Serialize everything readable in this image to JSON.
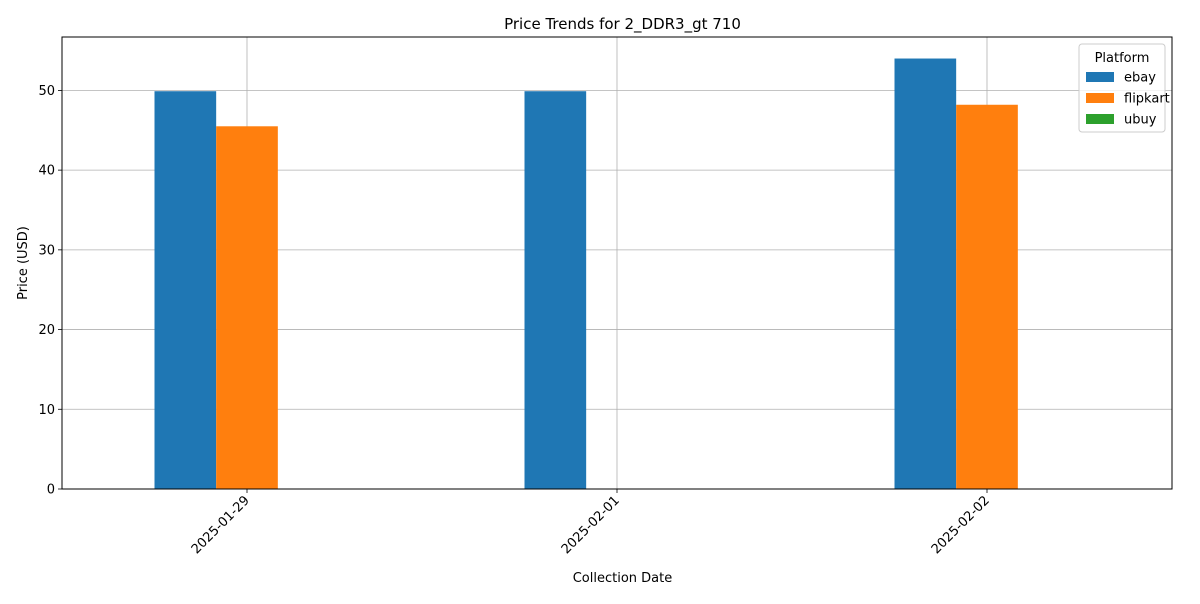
{
  "chart_data": {
    "type": "bar",
    "title": "Price Trends for 2_DDR3_gt 710",
    "xlabel": "Collection Date",
    "ylabel": "Price (USD)",
    "categories": [
      "2025-01-29",
      "2025-02-01",
      "2025-02-02"
    ],
    "series": [
      {
        "name": "ebay",
        "color": "#1f77b4",
        "values": [
          49.9,
          49.9,
          54.0
        ]
      },
      {
        "name": "flipkart",
        "color": "#ff7f0e",
        "values": [
          45.5,
          null,
          48.2
        ]
      },
      {
        "name": "ubuy",
        "color": "#2ca02c",
        "values": [
          null,
          null,
          null
        ]
      }
    ],
    "ylim": [
      0,
      56.7
    ],
    "yticks": [
      0,
      10,
      20,
      30,
      40,
      50
    ],
    "grid": true,
    "legend": {
      "title": "Platform",
      "placement": "top-right"
    }
  }
}
